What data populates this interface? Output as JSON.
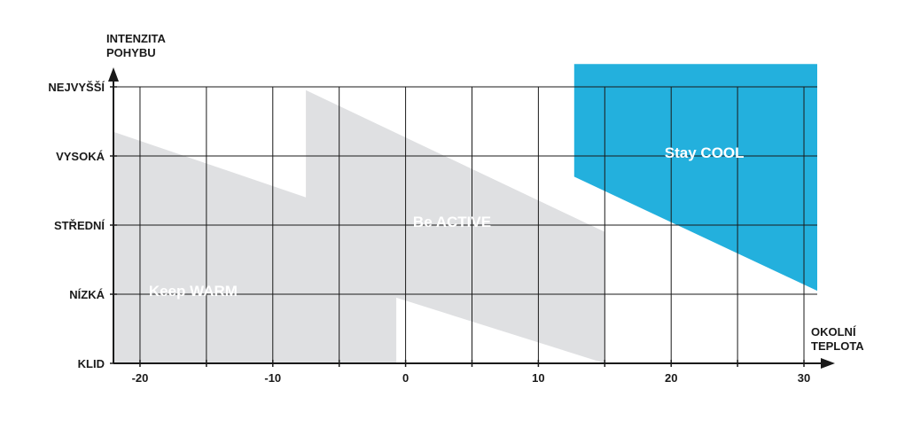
{
  "chart_data": {
    "type": "area",
    "title": "",
    "ylabel": [
      "INTENZITA",
      "POHYBU"
    ],
    "xlabel": [
      "OKOLNÍ",
      "TEPLOTA"
    ],
    "xlim": [
      -22,
      31
    ],
    "ylim": [
      0,
      4
    ],
    "x_ticks": [
      -20,
      -15,
      -10,
      -5,
      0,
      5,
      10,
      15,
      20,
      25,
      30
    ],
    "x_tick_labels": [
      {
        "value": -20,
        "label": "-20"
      },
      {
        "value": -10,
        "label": "-10"
      },
      {
        "value": 0,
        "label": "0"
      },
      {
        "value": 10,
        "label": "10"
      },
      {
        "value": 20,
        "label": "20"
      },
      {
        "value": 30,
        "label": "30"
      }
    ],
    "y_categories": [
      "KLID",
      "NÍZKÁ",
      "STŘEDNÍ",
      "VYSOKÁ",
      "NEJVYŠŠÍ"
    ],
    "grid": true,
    "zones": [
      {
        "name": "Keep WARM",
        "color": "#dfe0e2",
        "label_at": [
          -16,
          1.05
        ],
        "polygon": [
          [
            -22,
            0
          ],
          [
            -0.7,
            0
          ],
          [
            -0.7,
            0.95
          ],
          [
            15,
            0
          ],
          [
            15,
            1.9
          ],
          [
            -7.5,
            3.95
          ],
          [
            -7.5,
            2.4
          ],
          [
            -22,
            3.35
          ]
        ]
      },
      {
        "name": "Be ACTIVE",
        "color": "#dfe0e2",
        "label_at": [
          3.5,
          2.05
        ],
        "polygon": [
          [
            -7.5,
            2.4
          ],
          [
            -7.5,
            3.95
          ],
          [
            15,
            1.9
          ]
        ]
      },
      {
        "name": "Stay COOL",
        "color": "#23b0dd",
        "label_at": [
          22.5,
          3.05
        ],
        "polygon": [
          [
            12.7,
            4.33
          ],
          [
            31,
            4.33
          ],
          [
            31,
            1.05
          ],
          [
            12.7,
            2.7
          ]
        ]
      }
    ]
  }
}
